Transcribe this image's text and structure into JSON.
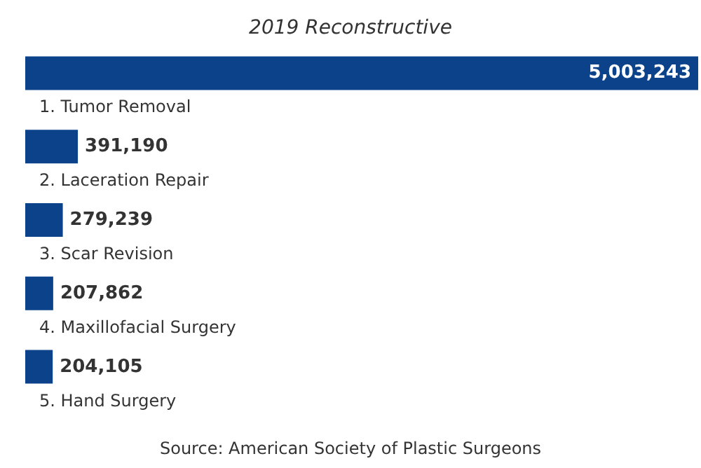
{
  "chart_data": {
    "type": "bar",
    "orientation": "horizontal",
    "title": "2019 Reconstructive",
    "categories": [
      "1. Tumor Removal",
      "2. Laceration Repair",
      "3. Scar Revision",
      "4. Maxillofacial Surgery",
      "5. Hand Surgery"
    ],
    "values": [
      5003243,
      391190,
      279239,
      207862,
      204105
    ],
    "value_labels": [
      "5,003,243",
      "391,190",
      "279,239",
      "207,862",
      "204,105"
    ],
    "color": "#0b428a",
    "annotations": [
      "Source: American Society of Plastic Surgeons"
    ]
  }
}
